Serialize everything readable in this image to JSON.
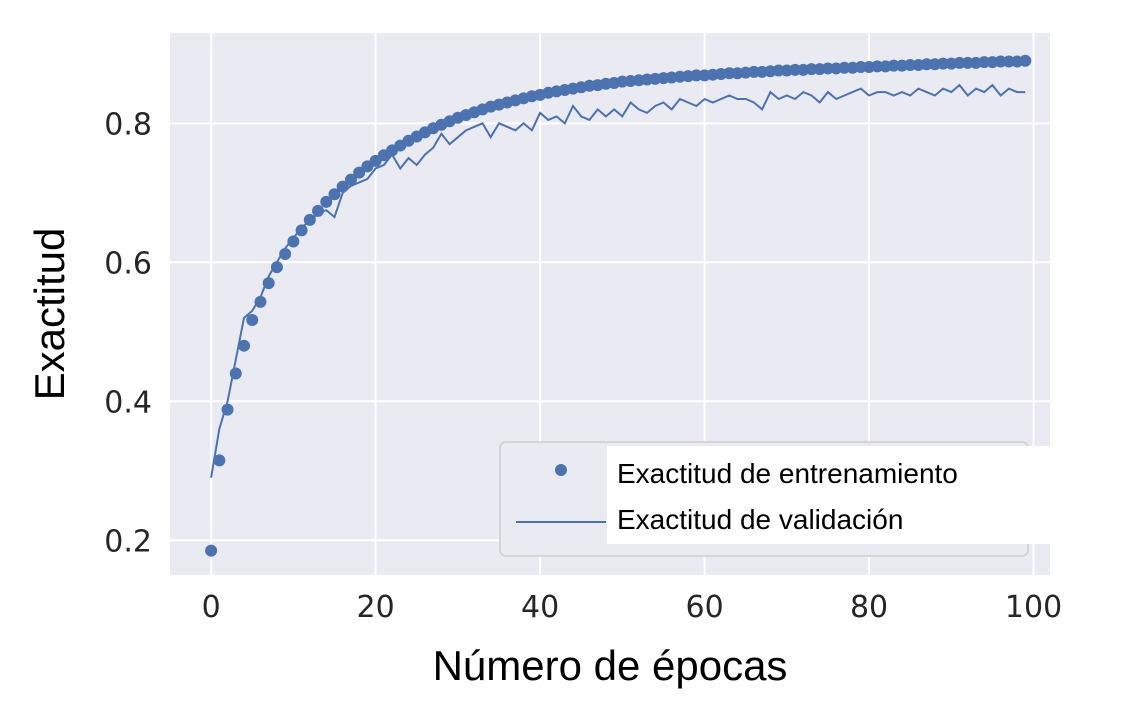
{
  "chart_data": {
    "type": "line",
    "title": "",
    "xlabel": "Número de épocas",
    "ylabel": "Exactitud",
    "xlim": [
      -5,
      102
    ],
    "ylim": [
      0.15,
      0.93
    ],
    "x_ticks": [
      0,
      20,
      40,
      60,
      80,
      100
    ],
    "x_tick_labels": [
      "0",
      "20",
      "40",
      "60",
      "80",
      "100"
    ],
    "y_ticks": [
      0.2,
      0.4,
      0.6,
      0.8
    ],
    "y_tick_labels": [
      "0.2",
      "0.4",
      "0.6",
      "0.8"
    ],
    "grid": true,
    "legend_position": "lower-right",
    "background_color": "#eaeaf2",
    "grid_color": "#ffffff",
    "series_color": "#4c72b0",
    "series": [
      {
        "name": "Exactitud de entrenamiento",
        "style": "markers",
        "x": [
          0,
          1,
          2,
          3,
          4,
          5,
          6,
          7,
          8,
          9,
          10,
          11,
          12,
          13,
          14,
          15,
          16,
          17,
          18,
          19,
          20,
          21,
          22,
          23,
          24,
          25,
          26,
          27,
          28,
          29,
          30,
          31,
          32,
          33,
          34,
          35,
          36,
          37,
          38,
          39,
          40,
          41,
          42,
          43,
          44,
          45,
          46,
          47,
          48,
          49,
          50,
          51,
          52,
          53,
          54,
          55,
          56,
          57,
          58,
          59,
          60,
          61,
          62,
          63,
          64,
          65,
          66,
          67,
          68,
          69,
          70,
          71,
          72,
          73,
          74,
          75,
          76,
          77,
          78,
          79,
          80,
          81,
          82,
          83,
          84,
          85,
          86,
          87,
          88,
          89,
          90,
          91,
          92,
          93,
          94,
          95,
          96,
          97,
          98,
          99
        ],
        "y": [
          0.185,
          0.315,
          0.388,
          0.44,
          0.48,
          0.517,
          0.543,
          0.57,
          0.593,
          0.612,
          0.63,
          0.646,
          0.661,
          0.674,
          0.687,
          0.698,
          0.709,
          0.719,
          0.729,
          0.738,
          0.746,
          0.754,
          0.761,
          0.768,
          0.775,
          0.781,
          0.787,
          0.793,
          0.798,
          0.803,
          0.808,
          0.812,
          0.816,
          0.82,
          0.824,
          0.827,
          0.83,
          0.833,
          0.836,
          0.839,
          0.841,
          0.844,
          0.846,
          0.848,
          0.85,
          0.852,
          0.854,
          0.855,
          0.857,
          0.858,
          0.86,
          0.861,
          0.862,
          0.863,
          0.864,
          0.865,
          0.866,
          0.867,
          0.868,
          0.869,
          0.869,
          0.87,
          0.871,
          0.872,
          0.872,
          0.873,
          0.874,
          0.874,
          0.875,
          0.876,
          0.876,
          0.877,
          0.877,
          0.878,
          0.878,
          0.879,
          0.879,
          0.88,
          0.88,
          0.881,
          0.881,
          0.882,
          0.882,
          0.883,
          0.883,
          0.884,
          0.884,
          0.885,
          0.885,
          0.886,
          0.886,
          0.887,
          0.887,
          0.887,
          0.888,
          0.888,
          0.889,
          0.889,
          0.889,
          0.89
        ]
      },
      {
        "name": "Exactitud de validación",
        "style": "line",
        "x": [
          0,
          1,
          2,
          3,
          4,
          5,
          6,
          7,
          8,
          9,
          10,
          11,
          12,
          13,
          14,
          15,
          16,
          17,
          18,
          19,
          20,
          21,
          22,
          23,
          24,
          25,
          26,
          27,
          28,
          29,
          30,
          31,
          32,
          33,
          34,
          35,
          36,
          37,
          38,
          39,
          40,
          41,
          42,
          43,
          44,
          45,
          46,
          47,
          48,
          49,
          50,
          51,
          52,
          53,
          54,
          55,
          56,
          57,
          58,
          59,
          60,
          61,
          62,
          63,
          64,
          65,
          66,
          67,
          68,
          69,
          70,
          71,
          72,
          73,
          74,
          75,
          76,
          77,
          78,
          79,
          80,
          81,
          82,
          83,
          84,
          85,
          86,
          87,
          88,
          89,
          90,
          91,
          92,
          93,
          94,
          95,
          96,
          97,
          98,
          99
        ],
        "y": [
          0.29,
          0.36,
          0.4,
          0.46,
          0.52,
          0.53,
          0.55,
          0.58,
          0.6,
          0.62,
          0.635,
          0.65,
          0.66,
          0.67,
          0.675,
          0.665,
          0.7,
          0.71,
          0.715,
          0.72,
          0.735,
          0.74,
          0.755,
          0.735,
          0.75,
          0.74,
          0.755,
          0.765,
          0.785,
          0.77,
          0.78,
          0.79,
          0.795,
          0.8,
          0.78,
          0.8,
          0.795,
          0.79,
          0.8,
          0.79,
          0.815,
          0.805,
          0.81,
          0.8,
          0.825,
          0.81,
          0.805,
          0.82,
          0.81,
          0.82,
          0.81,
          0.83,
          0.82,
          0.815,
          0.825,
          0.83,
          0.82,
          0.835,
          0.83,
          0.825,
          0.835,
          0.83,
          0.835,
          0.84,
          0.835,
          0.835,
          0.83,
          0.82,
          0.845,
          0.835,
          0.84,
          0.835,
          0.845,
          0.84,
          0.83,
          0.845,
          0.835,
          0.84,
          0.845,
          0.85,
          0.84,
          0.845,
          0.845,
          0.84,
          0.845,
          0.84,
          0.85,
          0.845,
          0.84,
          0.85,
          0.845,
          0.855,
          0.84,
          0.85,
          0.845,
          0.855,
          0.84,
          0.85,
          0.845,
          0.845
        ]
      }
    ]
  }
}
